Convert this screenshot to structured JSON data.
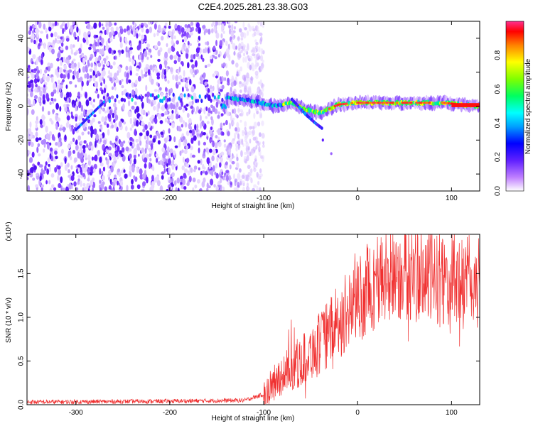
{
  "title": "C2E4.2025.281.23.38.G03",
  "chart_data": [
    {
      "type": "heatmap",
      "xlabel": "Height of straight line (km)",
      "ylabel": "Frequency (Hz)",
      "xlim": [
        -352,
        130
      ],
      "ylim": [
        -50,
        50
      ],
      "xticks": [
        -300,
        -200,
        -100,
        0,
        100
      ],
      "yticks": [
        -40,
        -20,
        0,
        20,
        40
      ],
      "description_values": {
        "noise_region_km": [
          -352,
          -120
        ],
        "signal_track": [
          {
            "x": -140,
            "f": 5
          },
          {
            "x": -110,
            "f": 3
          },
          {
            "x": -90,
            "f": 0
          },
          {
            "x": -70,
            "f": 2
          },
          {
            "x": -55,
            "f": -2
          },
          {
            "x": -40,
            "f": -4
          },
          {
            "x": -20,
            "f": 1
          },
          {
            "x": 0,
            "f": 2
          },
          {
            "x": 40,
            "f": 2
          },
          {
            "x": 90,
            "f": 2
          },
          {
            "x": 130,
            "f": 0
          }
        ],
        "branch": [
          {
            "x": -70,
            "f": 4
          },
          {
            "x": -55,
            "f": -5
          },
          {
            "x": -45,
            "f": -10
          },
          {
            "x": -38,
            "f": -13
          }
        ]
      },
      "colorbar": {
        "label": "Normalized spectral amplitude",
        "range": [
          0.0,
          1.0
        ],
        "ticks": [
          "0.0",
          "0.2",
          "0.4",
          "0.6",
          "0.8"
        ]
      }
    },
    {
      "type": "line",
      "xlabel": "Height of straight line (km)",
      "ylabel": "SNR (10 * v/v)",
      "exponent_label": "(x10⁴)",
      "xlim": [
        -352,
        130
      ],
      "ylim": [
        0,
        1.95
      ],
      "xticks": [
        -300,
        -200,
        -100,
        0,
        100
      ],
      "yticks": [
        "0.0",
        "0.5",
        "1.0",
        "1.5"
      ],
      "series": [
        {
          "name": "SNR",
          "color": "#f03030",
          "envelope_x": [
            -352,
            -200,
            -120,
            -100,
            -80,
            -60,
            -40,
            -20,
            0,
            20,
            40,
            60,
            80,
            100,
            120,
            130
          ],
          "envelope_y": [
            0.03,
            0.04,
            0.05,
            0.12,
            0.35,
            0.5,
            0.7,
            0.95,
            1.2,
            1.4,
            1.5,
            1.5,
            1.45,
            1.42,
            1.38,
            1.4
          ]
        }
      ]
    }
  ]
}
